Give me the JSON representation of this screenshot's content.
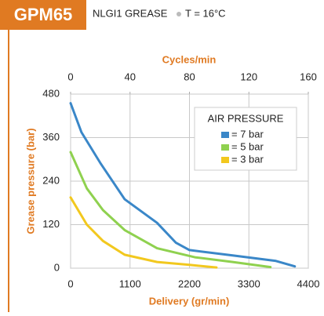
{
  "chart_data": {
    "type": "line",
    "title": "GPM65",
    "subtitle": "NLGI1 GREASE",
    "condition": "T = 16°C",
    "x_label": "Delivery (gr/min)",
    "x2_label": "Cycles/min",
    "y_label": "Grease pressure (bar)",
    "legend_title": "AIR PRESSURE",
    "xlim": [
      0,
      4400
    ],
    "xticks": [
      0,
      1100,
      2200,
      3300,
      4400
    ],
    "x2lim": [
      0,
      160
    ],
    "x2ticks": [
      0,
      40,
      80,
      120,
      160
    ],
    "ylim": [
      0,
      480
    ],
    "yticks": [
      0,
      120,
      240,
      360,
      480
    ],
    "grid": true,
    "series": [
      {
        "name": "= 7 bar",
        "color": "#3a87c8",
        "x": [
          0,
          200,
          550,
          1000,
          1600,
          1950,
          2200,
          3000,
          3800,
          4150
        ],
        "values": [
          455,
          375,
          290,
          190,
          125,
          70,
          50,
          35,
          20,
          5
        ]
      },
      {
        "name": "= 5 bar",
        "color": "#8fd14f",
        "x": [
          0,
          300,
          600,
          1000,
          1600,
          2300,
          3000,
          3700
        ],
        "values": [
          320,
          220,
          160,
          105,
          55,
          30,
          17,
          3
        ]
      },
      {
        "name": "= 3 bar",
        "color": "#f2c81e",
        "x": [
          0,
          300,
          600,
          1000,
          1600,
          2200,
          2700
        ],
        "values": [
          195,
          120,
          75,
          37,
          17,
          9,
          2
        ]
      }
    ]
  }
}
